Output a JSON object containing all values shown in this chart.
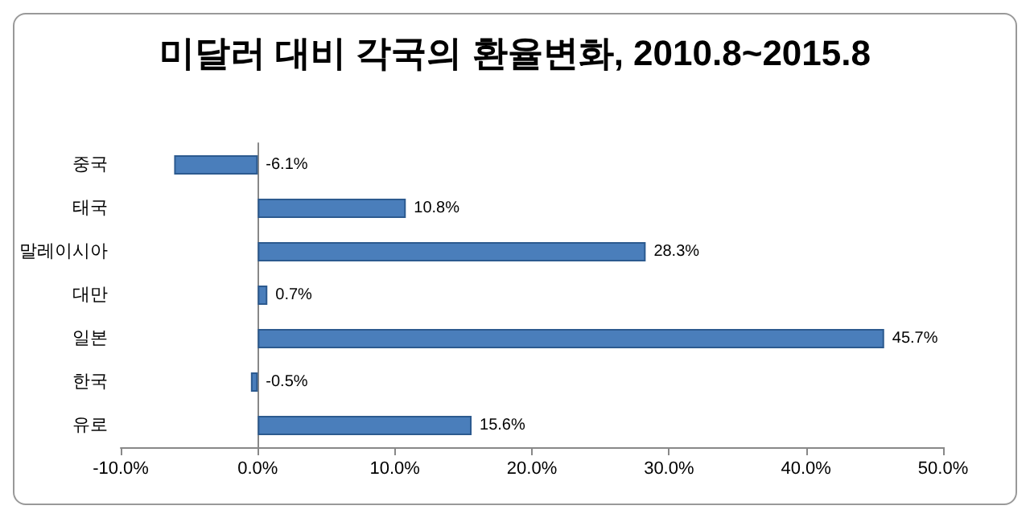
{
  "chart_data": {
    "type": "bar",
    "orientation": "horizontal",
    "title": "미달러 대비 각국의 환율변화, 2010.8~2015.8",
    "categories": [
      "중국",
      "태국",
      "말레이시아",
      "대만",
      "일본",
      "한국",
      "유로"
    ],
    "values": [
      -6.1,
      10.8,
      28.3,
      0.7,
      45.7,
      -0.5,
      15.6
    ],
    "value_labels": [
      "-6.1%",
      "10.8%",
      "28.3%",
      "0.7%",
      "45.7%",
      "-0.5%",
      "15.6%"
    ],
    "color": "#4a7ebb",
    "xlim": [
      -10,
      50
    ],
    "xticks": [
      {
        "value": -10,
        "label": "-10.0%"
      },
      {
        "value": 0,
        "label": "0.0%"
      },
      {
        "value": 10,
        "label": "10.0%"
      },
      {
        "value": 20,
        "label": "20.0%"
      },
      {
        "value": 30,
        "label": "30.0%"
      },
      {
        "value": 40,
        "label": "40.0%"
      },
      {
        "value": 50,
        "label": "50.0%"
      }
    ]
  }
}
